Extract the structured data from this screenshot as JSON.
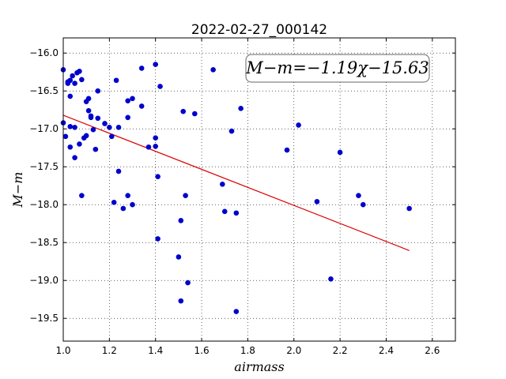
{
  "chart_data": {
    "type": "scatter",
    "title": "2022-02-27_000142",
    "xlabel": "airmass",
    "ylabel": "M−m",
    "xlim": [
      1.0,
      2.7
    ],
    "ylim": [
      -19.8,
      -15.8
    ],
    "y_inverted": true,
    "grid": true,
    "x_ticks": [
      "1.0",
      "1.2",
      "1.4",
      "1.6",
      "1.8",
      "2.0",
      "2.2",
      "2.4",
      "2.6"
    ],
    "y_ticks": [
      "−16.0",
      "−16.5",
      "−17.0",
      "−17.5",
      "−18.0",
      "−18.5",
      "−19.0",
      "−19.5"
    ],
    "annotation": "M−m=−1.19χ−15.63",
    "annotation_position": "top-right",
    "point_color": "#0000cc",
    "fit_color": "#dd0000",
    "fit_line": {
      "slope": -1.19,
      "intercept": -15.63,
      "x_range": [
        1.0,
        2.5
      ]
    },
    "points": [
      {
        "x": 1.0,
        "y": -16.22
      },
      {
        "x": 1.0,
        "y": -16.92
      },
      {
        "x": 1.01,
        "y": -17.1
      },
      {
        "x": 1.02,
        "y": -16.38
      },
      {
        "x": 1.02,
        "y": -16.4
      },
      {
        "x": 1.03,
        "y": -16.36
      },
      {
        "x": 1.03,
        "y": -16.97
      },
      {
        "x": 1.03,
        "y": -16.57
      },
      {
        "x": 1.03,
        "y": -17.24
      },
      {
        "x": 1.04,
        "y": -16.3
      },
      {
        "x": 1.05,
        "y": -16.4
      },
      {
        "x": 1.05,
        "y": -16.98
      },
      {
        "x": 1.05,
        "y": -17.38
      },
      {
        "x": 1.06,
        "y": -16.26
      },
      {
        "x": 1.07,
        "y": -16.24
      },
      {
        "x": 1.07,
        "y": -17.2
      },
      {
        "x": 1.08,
        "y": -16.35
      },
      {
        "x": 1.08,
        "y": -17.88
      },
      {
        "x": 1.09,
        "y": -17.12
      },
      {
        "x": 1.1,
        "y": -17.09
      },
      {
        "x": 1.1,
        "y": -16.64
      },
      {
        "x": 1.11,
        "y": -16.6
      },
      {
        "x": 1.11,
        "y": -16.76
      },
      {
        "x": 1.12,
        "y": -16.83
      },
      {
        "x": 1.12,
        "y": -16.85
      },
      {
        "x": 1.13,
        "y": -17.01
      },
      {
        "x": 1.14,
        "y": -17.27
      },
      {
        "x": 1.15,
        "y": -16.5
      },
      {
        "x": 1.15,
        "y": -16.86
      },
      {
        "x": 1.18,
        "y": -16.93
      },
      {
        "x": 1.2,
        "y": -16.98
      },
      {
        "x": 1.21,
        "y": -17.1
      },
      {
        "x": 1.22,
        "y": -17.97
      },
      {
        "x": 1.23,
        "y": -16.36
      },
      {
        "x": 1.24,
        "y": -16.98
      },
      {
        "x": 1.24,
        "y": -17.56
      },
      {
        "x": 1.26,
        "y": -18.05
      },
      {
        "x": 1.28,
        "y": -16.63
      },
      {
        "x": 1.28,
        "y": -16.85
      },
      {
        "x": 1.28,
        "y": -17.88
      },
      {
        "x": 1.3,
        "y": -16.6
      },
      {
        "x": 1.3,
        "y": -18.0
      },
      {
        "x": 1.34,
        "y": -16.2
      },
      {
        "x": 1.34,
        "y": -16.7
      },
      {
        "x": 1.37,
        "y": -17.24
      },
      {
        "x": 1.4,
        "y": -16.15
      },
      {
        "x": 1.4,
        "y": -17.12
      },
      {
        "x": 1.4,
        "y": -17.23
      },
      {
        "x": 1.41,
        "y": -17.63
      },
      {
        "x": 1.41,
        "y": -18.45
      },
      {
        "x": 1.42,
        "y": -16.44
      },
      {
        "x": 1.5,
        "y": -18.69
      },
      {
        "x": 1.51,
        "y": -18.21
      },
      {
        "x": 1.51,
        "y": -19.27
      },
      {
        "x": 1.52,
        "y": -16.77
      },
      {
        "x": 1.53,
        "y": -17.88
      },
      {
        "x": 1.54,
        "y": -19.03
      },
      {
        "x": 1.57,
        "y": -16.8
      },
      {
        "x": 1.65,
        "y": -16.22
      },
      {
        "x": 1.69,
        "y": -17.73
      },
      {
        "x": 1.7,
        "y": -18.09
      },
      {
        "x": 1.73,
        "y": -17.03
      },
      {
        "x": 1.75,
        "y": -18.11
      },
      {
        "x": 1.75,
        "y": -19.41
      },
      {
        "x": 1.77,
        "y": -16.73
      },
      {
        "x": 1.97,
        "y": -17.28
      },
      {
        "x": 2.02,
        "y": -16.95
      },
      {
        "x": 2.1,
        "y": -17.96
      },
      {
        "x": 2.16,
        "y": -18.98
      },
      {
        "x": 2.2,
        "y": -17.31
      },
      {
        "x": 2.28,
        "y": -17.88
      },
      {
        "x": 2.3,
        "y": -18.0
      },
      {
        "x": 2.5,
        "y": -18.05
      }
    ]
  }
}
